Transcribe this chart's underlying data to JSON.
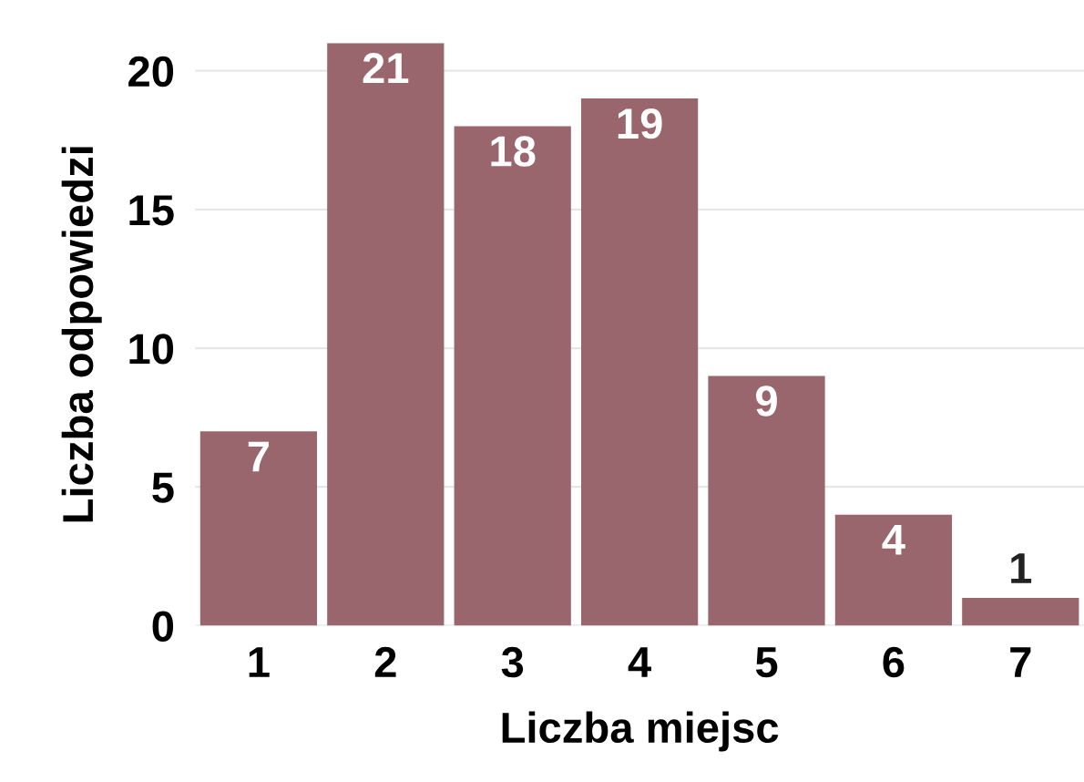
{
  "chart_data": {
    "type": "bar",
    "xlabel": "Liczba miejsc",
    "ylabel": "Liczba odpowiedzi",
    "categories": [
      "1",
      "2",
      "3",
      "4",
      "5",
      "6",
      "7"
    ],
    "values": [
      7,
      21,
      18,
      19,
      9,
      4,
      1
    ],
    "color": "#9a666e",
    "ylim": [
      0,
      21
    ],
    "yticks": [
      0,
      5,
      10,
      15,
      20
    ],
    "grid": "y",
    "data_labels": true
  }
}
